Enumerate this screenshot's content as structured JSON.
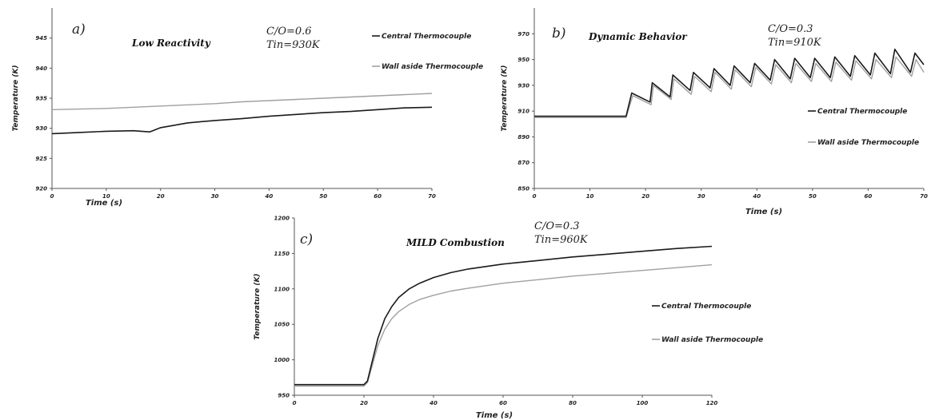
{
  "chart_data": [
    {
      "type": "line",
      "panel_label": "a)",
      "title": "Low Reactivity",
      "condition_lines": [
        "C/O=0.6",
        "Tin=930K"
      ],
      "xlabel": "Time (s)",
      "ylabel": "Temperature (K)",
      "xlim": [
        0,
        70
      ],
      "ylim": [
        920,
        950
      ],
      "xticks": [
        0,
        10,
        20,
        30,
        40,
        50,
        60,
        70
      ],
      "yticks": [
        920,
        925,
        930,
        935,
        940,
        945
      ],
      "legend_position": "top-right",
      "colors": {
        "central": "#1a1a1a",
        "wall": "#a0a0a0"
      },
      "series": [
        {
          "name": "Central Thermocouple",
          "x": [
            0,
            5,
            10,
            15,
            18,
            20,
            25,
            30,
            35,
            40,
            45,
            50,
            55,
            60,
            65,
            70
          ],
          "y": [
            929.1,
            929.3,
            929.5,
            929.6,
            929.4,
            930.1,
            930.9,
            931.3,
            931.6,
            932.0,
            932.3,
            932.6,
            932.8,
            933.1,
            933.4,
            933.5
          ]
        },
        {
          "name": "Wall aside Thermocouple",
          "x": [
            0,
            5,
            10,
            15,
            20,
            25,
            30,
            35,
            40,
            45,
            50,
            55,
            60,
            65,
            70
          ],
          "y": [
            933.1,
            933.2,
            933.3,
            933.5,
            933.7,
            933.9,
            934.1,
            934.4,
            934.6,
            934.8,
            935.0,
            935.2,
            935.4,
            935.6,
            935.8
          ]
        }
      ]
    },
    {
      "type": "line",
      "panel_label": "b)",
      "title": "Dynamic Behavior",
      "condition_lines": [
        "C/O=0.3",
        "Tin=910K"
      ],
      "xlabel": "Time (s)",
      "ylabel": "Temperature (K)",
      "xlim": [
        0,
        70
      ],
      "ylim": [
        850,
        990
      ],
      "xticks": [
        0,
        10,
        20,
        30,
        40,
        50,
        60,
        70
      ],
      "yticks": [
        850,
        870,
        890,
        910,
        930,
        950,
        970
      ],
      "legend_position": "right",
      "colors": {
        "central": "#1a1a1a",
        "wall": "#a0a0a0"
      },
      "series": [
        {
          "name": "Central Thermocouple",
          "x": [
            0,
            16.5,
            17.5,
            20.8,
            21.2,
            24.4,
            24.9,
            28.0,
            28.6,
            31.6,
            32.3,
            35.2,
            35.9,
            38.8,
            39.6,
            42.4,
            43.2,
            46.0,
            46.8,
            49.6,
            50.4,
            53.2,
            54.0,
            56.8,
            57.6,
            60.4,
            61.2,
            64.0,
            64.8,
            67.6,
            68.4,
            70.0
          ],
          "y": [
            906,
            906,
            924,
            917,
            932,
            921,
            938,
            926,
            940,
            928,
            943,
            930,
            945,
            932,
            947,
            934,
            950,
            935,
            951,
            936,
            951,
            936,
            952,
            937,
            953,
            938,
            955,
            939,
            958,
            940,
            955,
            946
          ]
        },
        {
          "name": "Wall aside Thermocouple",
          "x": [
            0,
            16.5,
            17.7,
            21.0,
            21.4,
            24.6,
            25.1,
            28.2,
            28.8,
            31.8,
            32.5,
            35.4,
            36.1,
            39.0,
            39.8,
            42.6,
            43.4,
            46.2,
            47.0,
            49.8,
            50.6,
            53.4,
            54.2,
            57.0,
            57.8,
            60.6,
            61.4,
            64.2,
            65.0,
            67.8,
            68.6,
            70.0
          ],
          "y": [
            905,
            905,
            922,
            915,
            930,
            919,
            935,
            923,
            937,
            925,
            940,
            927,
            942,
            929,
            944,
            931,
            946,
            932,
            947,
            933,
            947,
            933,
            948,
            934,
            949,
            935,
            950,
            936,
            952,
            937,
            950,
            940
          ]
        }
      ]
    },
    {
      "type": "line",
      "panel_label": "c)",
      "title": "MILD Combustion",
      "condition_lines": [
        "C/O=0.3",
        "Tin=960K"
      ],
      "xlabel": "Time (s)",
      "ylabel": "Temperature (K)",
      "xlim": [
        0,
        120
      ],
      "ylim": [
        950,
        1200
      ],
      "xticks": [
        0,
        20,
        40,
        60,
        80,
        100,
        120
      ],
      "yticks": [
        950,
        1000,
        1050,
        1100,
        1150,
        1200
      ],
      "legend_position": "right",
      "colors": {
        "central": "#1a1a1a",
        "wall": "#a0a0a0"
      },
      "series": [
        {
          "name": "Central Thermocouple",
          "x": [
            0,
            20,
            21,
            22,
            24,
            26,
            28,
            30,
            33,
            36,
            40,
            45,
            50,
            60,
            70,
            80,
            90,
            100,
            110,
            120
          ],
          "y": [
            965,
            965,
            970,
            990,
            1030,
            1058,
            1075,
            1088,
            1100,
            1108,
            1116,
            1123,
            1128,
            1135,
            1140,
            1145,
            1149,
            1153,
            1157,
            1160
          ]
        },
        {
          "name": "Wall aside Thermocouple",
          "x": [
            0,
            20,
            21,
            22,
            24,
            26,
            28,
            30,
            33,
            36,
            40,
            45,
            50,
            60,
            70,
            80,
            90,
            100,
            110,
            120
          ],
          "y": [
            963,
            963,
            968,
            985,
            1020,
            1043,
            1058,
            1068,
            1078,
            1085,
            1091,
            1097,
            1101,
            1108,
            1113,
            1118,
            1122,
            1126,
            1130,
            1134
          ]
        }
      ]
    }
  ]
}
